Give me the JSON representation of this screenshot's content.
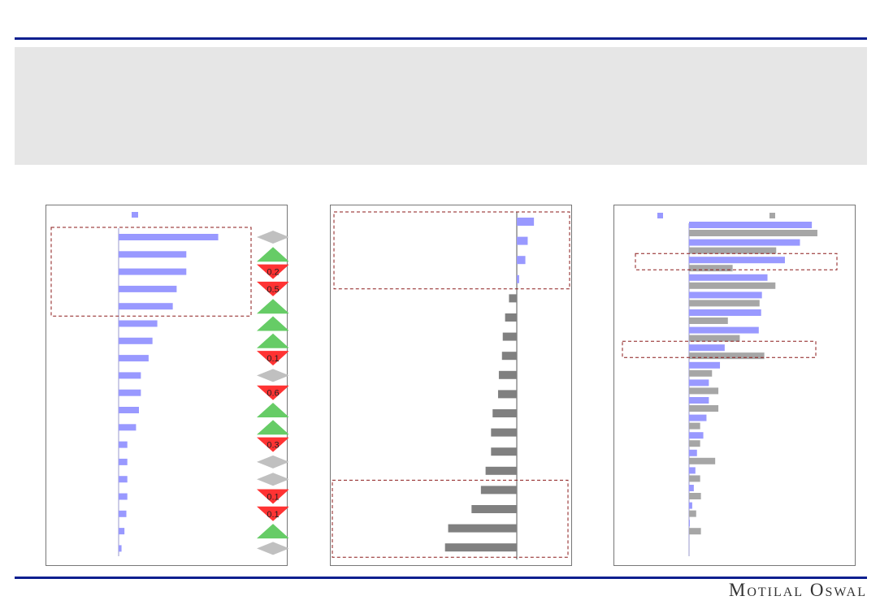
{
  "brand": {
    "name": "Motilal Oswal"
  },
  "colors": {
    "blue_bar": "#9999ff",
    "grey_bar": "#808080",
    "grey_bar_light": "#a6a6a6",
    "up": "#66cc66",
    "down": "#ff3333",
    "neutral": "#c0c0c0",
    "highlight_box": "#8b1a1a",
    "rule": "#0a1f8f",
    "band": "#e6e6e6"
  },
  "chart_data": [
    {
      "type": "bar",
      "orientation": "horizontal",
      "series": [
        {
          "color": "#9999ff",
          "values": [
            10.3,
            7.0,
            7.0,
            6.0,
            5.6,
            4.0,
            3.5,
            3.1,
            2.3,
            2.3,
            2.1,
            1.8,
            0.9,
            0.9,
            0.9,
            0.9,
            0.8,
            0.6,
            0.3
          ]
        }
      ],
      "change_indicators": [
        "neutral",
        "up",
        "down",
        "down",
        "up",
        "up",
        "up",
        "down",
        "neutral",
        "down",
        "up",
        "up",
        "down",
        "neutral",
        "neutral",
        "down",
        "down",
        "up",
        "neutral"
      ],
      "change_values": [
        "",
        "",
        "0.2",
        "0.5",
        "",
        "",
        "",
        "0.1",
        "",
        "0.6",
        "",
        "",
        "0.3",
        "",
        "",
        "0.1",
        "0.1",
        "",
        ""
      ],
      "highlighted_rows": [
        0,
        4
      ]
    },
    {
      "type": "bar",
      "orientation": "horizontal",
      "series": [
        {
          "values": [
            2.2,
            1.4,
            1.1,
            0.3,
            -1.0,
            -1.5,
            -1.8,
            -1.9,
            -2.3,
            -2.4,
            -3.1,
            -3.3,
            -3.3,
            -4.0,
            -4.6,
            -5.8,
            -8.8,
            -9.2
          ]
        }
      ],
      "highlighted_rows": [
        [
          0,
          3
        ],
        [
          14,
          17
        ]
      ]
    },
    {
      "type": "bar",
      "orientation": "horizontal",
      "series": [
        {
          "color": "#9999ff",
          "values": [
            15.5,
            14.0,
            12.1,
            9.9,
            9.2,
            9.1,
            8.8,
            4.5,
            3.9,
            2.5,
            2.5,
            2.2,
            1.8,
            1.0,
            0.8,
            0.6,
            0.4,
            0.1
          ]
        },
        {
          "color": "#a6a6a6",
          "values": [
            16.2,
            11.0,
            5.5,
            10.9,
            8.9,
            4.9,
            6.4,
            9.5,
            2.9,
            3.7,
            3.7,
            1.4,
            1.4,
            3.3,
            1.4,
            1.5,
            0.9,
            1.5
          ]
        }
      ],
      "highlighted_rows": [
        2,
        7
      ]
    }
  ]
}
